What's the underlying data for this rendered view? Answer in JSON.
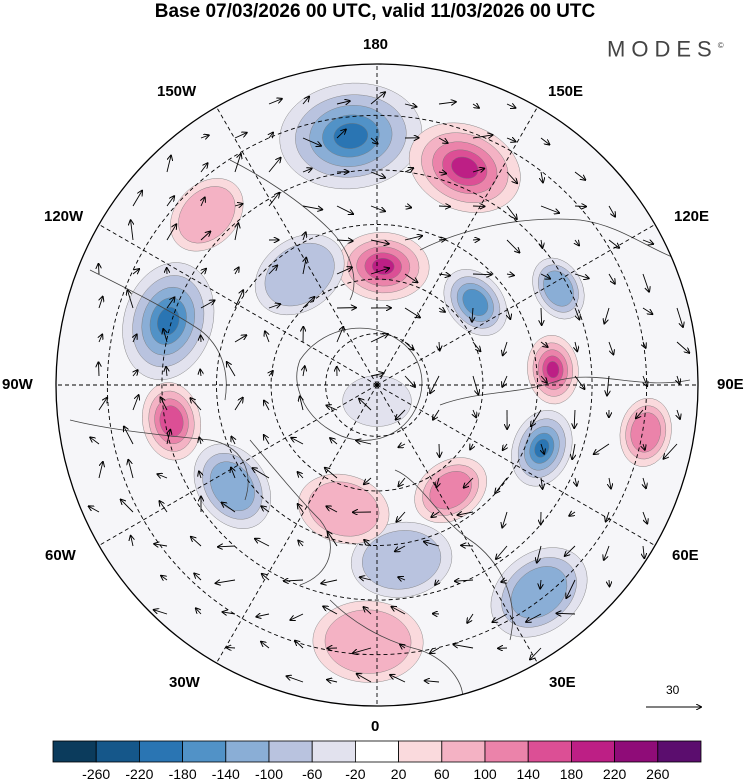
{
  "title": "Base 07/03/2026 00 UTC, valid 11/03/2026 00 UTC",
  "brand": "MODES",
  "brand_mark": "©",
  "longitude_labels": [
    {
      "key": "n180",
      "text": "180"
    },
    {
      "key": "e150",
      "text": "150E"
    },
    {
      "key": "e120",
      "text": "120E"
    },
    {
      "key": "e90",
      "text": "90E"
    },
    {
      "key": "e60",
      "text": "60E"
    },
    {
      "key": "e30",
      "text": "30E"
    },
    {
      "key": "s0",
      "text": "0"
    },
    {
      "key": "w30",
      "text": "30W"
    },
    {
      "key": "w60",
      "text": "60W"
    },
    {
      "key": "w90",
      "text": "90W"
    },
    {
      "key": "w120",
      "text": "120W"
    },
    {
      "key": "w150",
      "text": "150W"
    }
  ],
  "wind_scale": {
    "label": "30"
  },
  "colorbar": {
    "ticks": [
      "-260",
      "-220",
      "-180",
      "-140",
      "-100",
      "-60",
      "-20",
      "20",
      "60",
      "100",
      "140",
      "180",
      "220",
      "260"
    ],
    "colors": [
      "#0b3b5c",
      "#15578a",
      "#2a75b3",
      "#5192c7",
      "#8aaed6",
      "#b9c3df",
      "#e2e2ee",
      "#ffffff",
      "#fadadd",
      "#f4b2c4",
      "#eb83aa",
      "#dc4f95",
      "#bd1f85",
      "#8f0c78",
      "#5b0d6e"
    ]
  },
  "anomaly_cells": [
    {
      "name": "neg-cell-aleutian",
      "lon": -174,
      "r": 0.78,
      "value": -185
    },
    {
      "name": "pos-cell-bering",
      "lon": 158,
      "r": 0.73,
      "value": 170
    },
    {
      "name": "pos-cell-east-siberian",
      "lon": 177,
      "r": 0.37,
      "value": 195
    },
    {
      "name": "neg-cell-yakutia",
      "lon": 130,
      "r": 0.4,
      "value": -150
    },
    {
      "name": "neg-cell-baikal",
      "lon": 118,
      "r": 0.64,
      "value": -100
    },
    {
      "name": "pos-cell-taymyr",
      "lon": 95,
      "r": 0.55,
      "value": 225
    },
    {
      "name": "neg-cell-ural",
      "lon": 69,
      "r": 0.55,
      "value": -200
    },
    {
      "name": "pos-cell-west-siberia",
      "lon": 80,
      "r": 0.85,
      "value": 120
    },
    {
      "name": "neg-cell-canada-west",
      "lon": -107,
      "r": 0.68,
      "value": -170
    },
    {
      "name": "neg-cell-beaufort",
      "lon": -145,
      "r": 0.42,
      "value": -80
    },
    {
      "name": "pos-cell-gulf-alaska",
      "lon": -135,
      "r": 0.75,
      "value": 60
    },
    {
      "name": "pos-cell-hudson",
      "lon": -80,
      "r": 0.65,
      "value": 130
    },
    {
      "name": "neg-cell-labrador",
      "lon": -55,
      "r": 0.55,
      "value": -100
    },
    {
      "name": "pos-cell-scandinavia",
      "lon": 35,
      "r": 0.4,
      "value": 120
    },
    {
      "name": "neg-cell-north-sea",
      "lon": 8,
      "r": 0.55,
      "value": -70
    },
    {
      "name": "pos-cell-iberia",
      "lon": -2,
      "r": 0.8,
      "value": 70
    },
    {
      "name": "neg-cell-mediterranean",
      "lon": 38,
      "r": 0.82,
      "value": -90
    },
    {
      "name": "pos-cell-greenland-sea",
      "lon": -15,
      "r": 0.4,
      "value": 50
    },
    {
      "name": "neg-cell-pole",
      "lon": 0,
      "r": 0.05,
      "value": -25
    }
  ]
}
